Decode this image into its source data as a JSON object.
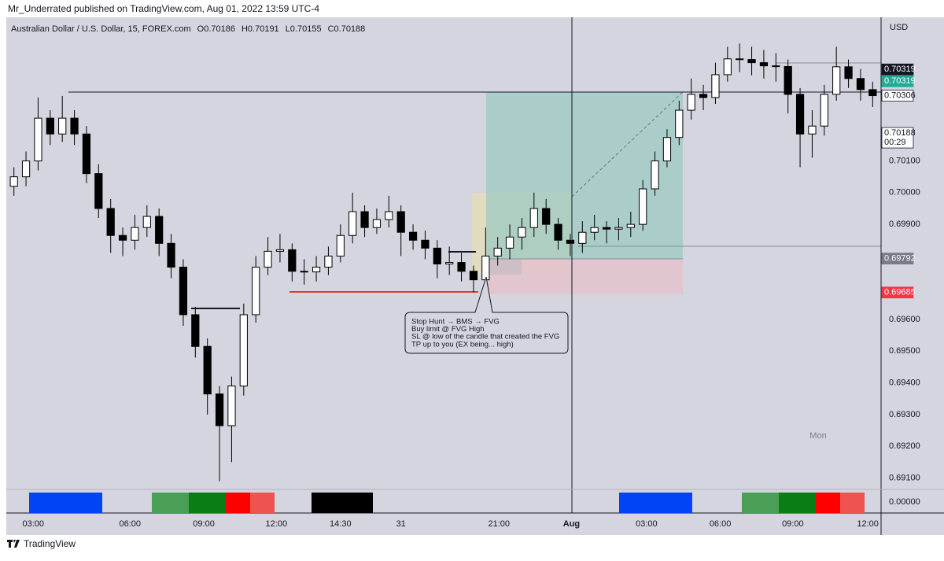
{
  "header": {
    "publisher": "Mr_Underrated published on TradingView.com, Aug 01, 2022 13:59 UTC-4",
    "brand": "TradingView"
  },
  "chart_data": {
    "type": "candlestick",
    "title": "Australian Dollar / U.S. Dollar, 15, FOREX.com",
    "ohlc_labels": [
      "O0.70186",
      "H0.70191",
      "L0.70155",
      "C0.70188"
    ],
    "currency": "USD",
    "day_label": "Mon",
    "annotation": [
      "Stop Hunt → BMS → FVG",
      "Buy limit @ FVG High",
      "SL @ low of the candle that created the FVG",
      "TP up to you (EX being... high)"
    ],
    "candles": [
      [
        0.7002,
        0.7008,
        0.6999,
        0.7005
      ],
      [
        0.7005,
        0.7013,
        0.7002,
        0.701
      ],
      [
        0.701,
        0.703,
        0.7007,
        0.70235
      ],
      [
        0.70235,
        0.7026,
        0.7015,
        0.70185
      ],
      [
        0.70185,
        0.70305,
        0.7016,
        0.70235
      ],
      [
        0.70235,
        0.7026,
        0.7015,
        0.70185
      ],
      [
        0.70185,
        0.7021,
        0.7003,
        0.7006
      ],
      [
        0.7006,
        0.7009,
        0.6992,
        0.6995
      ],
      [
        0.6995,
        0.6998,
        0.6981,
        0.69865
      ],
      [
        0.69865,
        0.6989,
        0.698,
        0.6985
      ],
      [
        0.6985,
        0.6993,
        0.6982,
        0.6989
      ],
      [
        0.6989,
        0.6996,
        0.6986,
        0.69925
      ],
      [
        0.69925,
        0.6995,
        0.698,
        0.6984
      ],
      [
        0.6984,
        0.6987,
        0.6973,
        0.69765
      ],
      [
        0.69765,
        0.6979,
        0.6958,
        0.69615
      ],
      [
        0.69615,
        0.6964,
        0.6948,
        0.69515
      ],
      [
        0.69515,
        0.6954,
        0.693,
        0.69365
      ],
      [
        0.69365,
        0.6939,
        0.6909,
        0.69265
      ],
      [
        0.69265,
        0.6942,
        0.6915,
        0.6939
      ],
      [
        0.6939,
        0.6965,
        0.6936,
        0.69615
      ],
      [
        0.69615,
        0.698,
        0.6959,
        0.69765
      ],
      [
        0.69765,
        0.6986,
        0.6974,
        0.69815
      ],
      [
        0.69815,
        0.6987,
        0.6978,
        0.6982
      ],
      [
        0.6982,
        0.6984,
        0.6972,
        0.69752
      ],
      [
        0.69752,
        0.6979,
        0.6971,
        0.6975
      ],
      [
        0.6975,
        0.698,
        0.6972,
        0.69765
      ],
      [
        0.69765,
        0.6983,
        0.6974,
        0.698
      ],
      [
        0.698,
        0.699,
        0.6978,
        0.69865
      ],
      [
        0.69865,
        0.7,
        0.6984,
        0.6994
      ],
      [
        0.6994,
        0.6996,
        0.6986,
        0.6989
      ],
      [
        0.6989,
        0.6995,
        0.6987,
        0.69915
      ],
      [
        0.69915,
        0.6999,
        0.6989,
        0.6994
      ],
      [
        0.6994,
        0.6996,
        0.698,
        0.69875
      ],
      [
        0.69875,
        0.699,
        0.6982,
        0.6985
      ],
      [
        0.6985,
        0.6988,
        0.6979,
        0.69825
      ],
      [
        0.69825,
        0.6985,
        0.6973,
        0.69775
      ],
      [
        0.69775,
        0.6983,
        0.6974,
        0.6978
      ],
      [
        0.6978,
        0.6981,
        0.6972,
        0.69752
      ],
      [
        0.69752,
        0.6977,
        0.69685,
        0.69725
      ],
      [
        0.69725,
        0.6989,
        0.697,
        0.698
      ],
      [
        0.698,
        0.6986,
        0.6977,
        0.69825
      ],
      [
        0.69825,
        0.699,
        0.6979,
        0.6986
      ],
      [
        0.6986,
        0.6992,
        0.6982,
        0.6989
      ],
      [
        0.6989,
        0.7,
        0.6986,
        0.6995
      ],
      [
        0.6995,
        0.6998,
        0.6987,
        0.699
      ],
      [
        0.699,
        0.6992,
        0.6982,
        0.6985
      ],
      [
        0.6985,
        0.6987,
        0.698,
        0.6984
      ],
      [
        0.6984,
        0.6991,
        0.6981,
        0.69875
      ],
      [
        0.69875,
        0.6993,
        0.6985,
        0.6989
      ],
      [
        0.6989,
        0.6991,
        0.6984,
        0.69885
      ],
      [
        0.69885,
        0.6992,
        0.6985,
        0.6989
      ],
      [
        0.6989,
        0.6994,
        0.6986,
        0.699
      ],
      [
        0.699,
        0.7004,
        0.6988,
        0.70012
      ],
      [
        0.70012,
        0.7013,
        0.6999,
        0.701
      ],
      [
        0.701,
        0.702,
        0.7008,
        0.70174
      ],
      [
        0.70174,
        0.7029,
        0.7015,
        0.7026
      ],
      [
        0.7026,
        0.7036,
        0.7023,
        0.7031
      ],
      [
        0.7031,
        0.7034,
        0.7026,
        0.703
      ],
      [
        0.703,
        0.7041,
        0.7028,
        0.70372
      ],
      [
        0.70372,
        0.7046,
        0.7035,
        0.70422
      ],
      [
        0.70422,
        0.7047,
        0.7038,
        0.7042
      ],
      [
        0.7042,
        0.7046,
        0.7037,
        0.7041
      ],
      [
        0.7041,
        0.7045,
        0.7036,
        0.704
      ],
      [
        0.704,
        0.7044,
        0.7035,
        0.70398
      ],
      [
        0.70398,
        0.7042,
        0.7025,
        0.7031
      ],
      [
        0.7031,
        0.7033,
        0.7008,
        0.70185
      ],
      [
        0.70185,
        0.7026,
        0.7011,
        0.7021
      ],
      [
        0.7021,
        0.7034,
        0.7018,
        0.7031
      ],
      [
        0.7031,
        0.7046,
        0.7029,
        0.70397
      ],
      [
        0.70397,
        0.7042,
        0.7033,
        0.7036
      ],
      [
        0.7036,
        0.7039,
        0.7029,
        0.70325
      ],
      [
        0.70325,
        0.7035,
        0.7027,
        0.70306
      ]
    ],
    "up_color": "#ffffff",
    "down_color": "#000000",
    "wick_color": "#000000",
    "xlim": [
      -0.5,
      71.5
    ],
    "xticks": [
      {
        "value": 1.6,
        "label": "03:00"
      },
      {
        "value": 9.6,
        "label": "06:00"
      },
      {
        "value": 15.7,
        "label": "09:00"
      },
      {
        "value": 21.7,
        "label": "12:00"
      },
      {
        "value": 27.0,
        "label": "14:30"
      },
      {
        "value": 32.0,
        "label": "31"
      },
      {
        "value": 40.1,
        "label": "21:00"
      },
      {
        "value": 46.1,
        "label": "Aug",
        "bold": true
      },
      {
        "value": 52.3,
        "label": "03:00"
      },
      {
        "value": 58.4,
        "label": "06:00"
      },
      {
        "value": 64.4,
        "label": "09:00"
      },
      {
        "value": 70.6,
        "label": "12:00"
      }
    ],
    "ylim": [
      0.69064,
      0.70553
    ],
    "yticks": [
      {
        "value": 0.691,
        "label": "0.69100"
      },
      {
        "value": 0.692,
        "label": "0.69200"
      },
      {
        "value": 0.693,
        "label": "0.69300"
      },
      {
        "value": 0.694,
        "label": "0.69400"
      },
      {
        "value": 0.695,
        "label": "0.69500"
      },
      {
        "value": 0.696,
        "label": "0.69600"
      },
      {
        "value": 0.699,
        "label": "0.69900"
      },
      {
        "value": 0.7,
        "label": "0.70000"
      },
      {
        "value": 0.701,
        "label": "0.70100"
      }
    ],
    "price_tags": [
      {
        "value": 0.70319,
        "label": "0.70319",
        "bg": "#131722",
        "fg": "#ffffff"
      },
      {
        "value": 0.70319,
        "label": "0.70319",
        "bg": "#22ab94",
        "fg": "#ffffff"
      },
      {
        "value": 0.70306,
        "label": "0.70306",
        "bg": "#ffffff",
        "fg": "#131722"
      },
      {
        "value": 0.70188,
        "label": "0.70188",
        "timer": "00:29",
        "bg": "#ffffff",
        "fg": "#131722"
      },
      {
        "value": 0.69792,
        "label": "0.69792",
        "bg": "#787b86",
        "fg": "#ffffff"
      },
      {
        "value": 0.69685,
        "label": "0.69685",
        "bg": "#f23645",
        "fg": "#ffffff"
      }
    ],
    "indicator_ticks": [
      {
        "value": 0,
        "label": "0.00000"
      }
    ]
  }
}
